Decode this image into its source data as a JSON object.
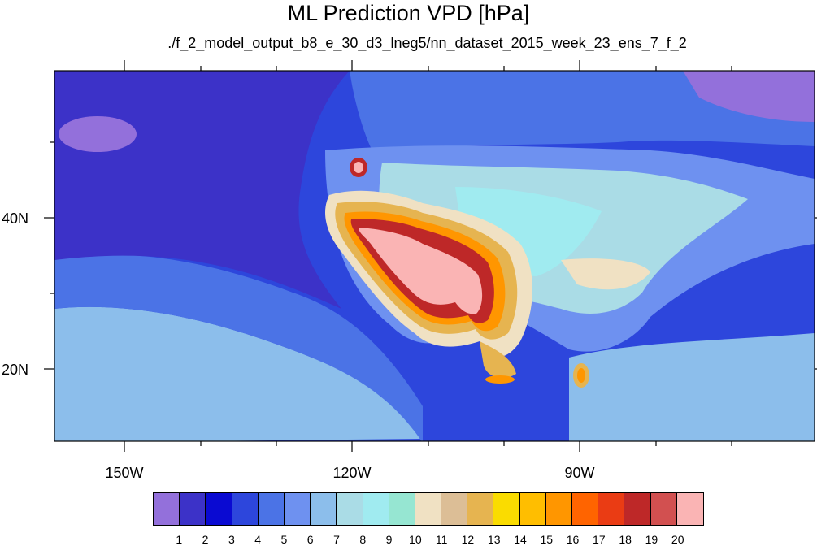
{
  "title": "ML Prediction VPD [hPa]",
  "subtitle": "./f_2_model_output_b8_e_30_d3_lneg5/nn_dataset_2015_week_23_ens_7_f_2",
  "axes": {
    "lon_labels": [
      "150W",
      "120W",
      "90W"
    ],
    "lat_labels": [
      "40N",
      "20N"
    ]
  },
  "colorbar": {
    "labels": [
      "1",
      "2",
      "3",
      "4",
      "5",
      "6",
      "7",
      "8",
      "9",
      "10",
      "11",
      "12",
      "13",
      "14",
      "15",
      "16",
      "17",
      "18",
      "19",
      "20"
    ],
    "colors": [
      "#9370db",
      "#3c32c8",
      "#0a0ad2",
      "#2d46dc",
      "#4b73e6",
      "#6e91f0",
      "#8cbeeb",
      "#aadce6",
      "#a0ebf0",
      "#96e6d2",
      "#f0e1c3",
      "#dcbe96",
      "#e6b450",
      "#fadc00",
      "#ffbe00",
      "#ff9600",
      "#ff6400",
      "#ea3c14",
      "#be2828",
      "#d25050",
      "#fab4b4"
    ]
  },
  "map_colors": {
    "ocean_deep": "#3c32c8",
    "ocean_mid": "#2d46dc",
    "ocean_light": "#4b73e6",
    "ocean_pale": "#8cbeeb",
    "land_cool": "#6e91f0",
    "land_mild": "#aadce6",
    "land_teal": "#a0ebf0",
    "arid_1": "#f0e1c3",
    "arid_2": "#e6b450",
    "hot_1": "#ff9600",
    "hot_2": "#be2828",
    "hottest": "#fab4b4"
  }
}
